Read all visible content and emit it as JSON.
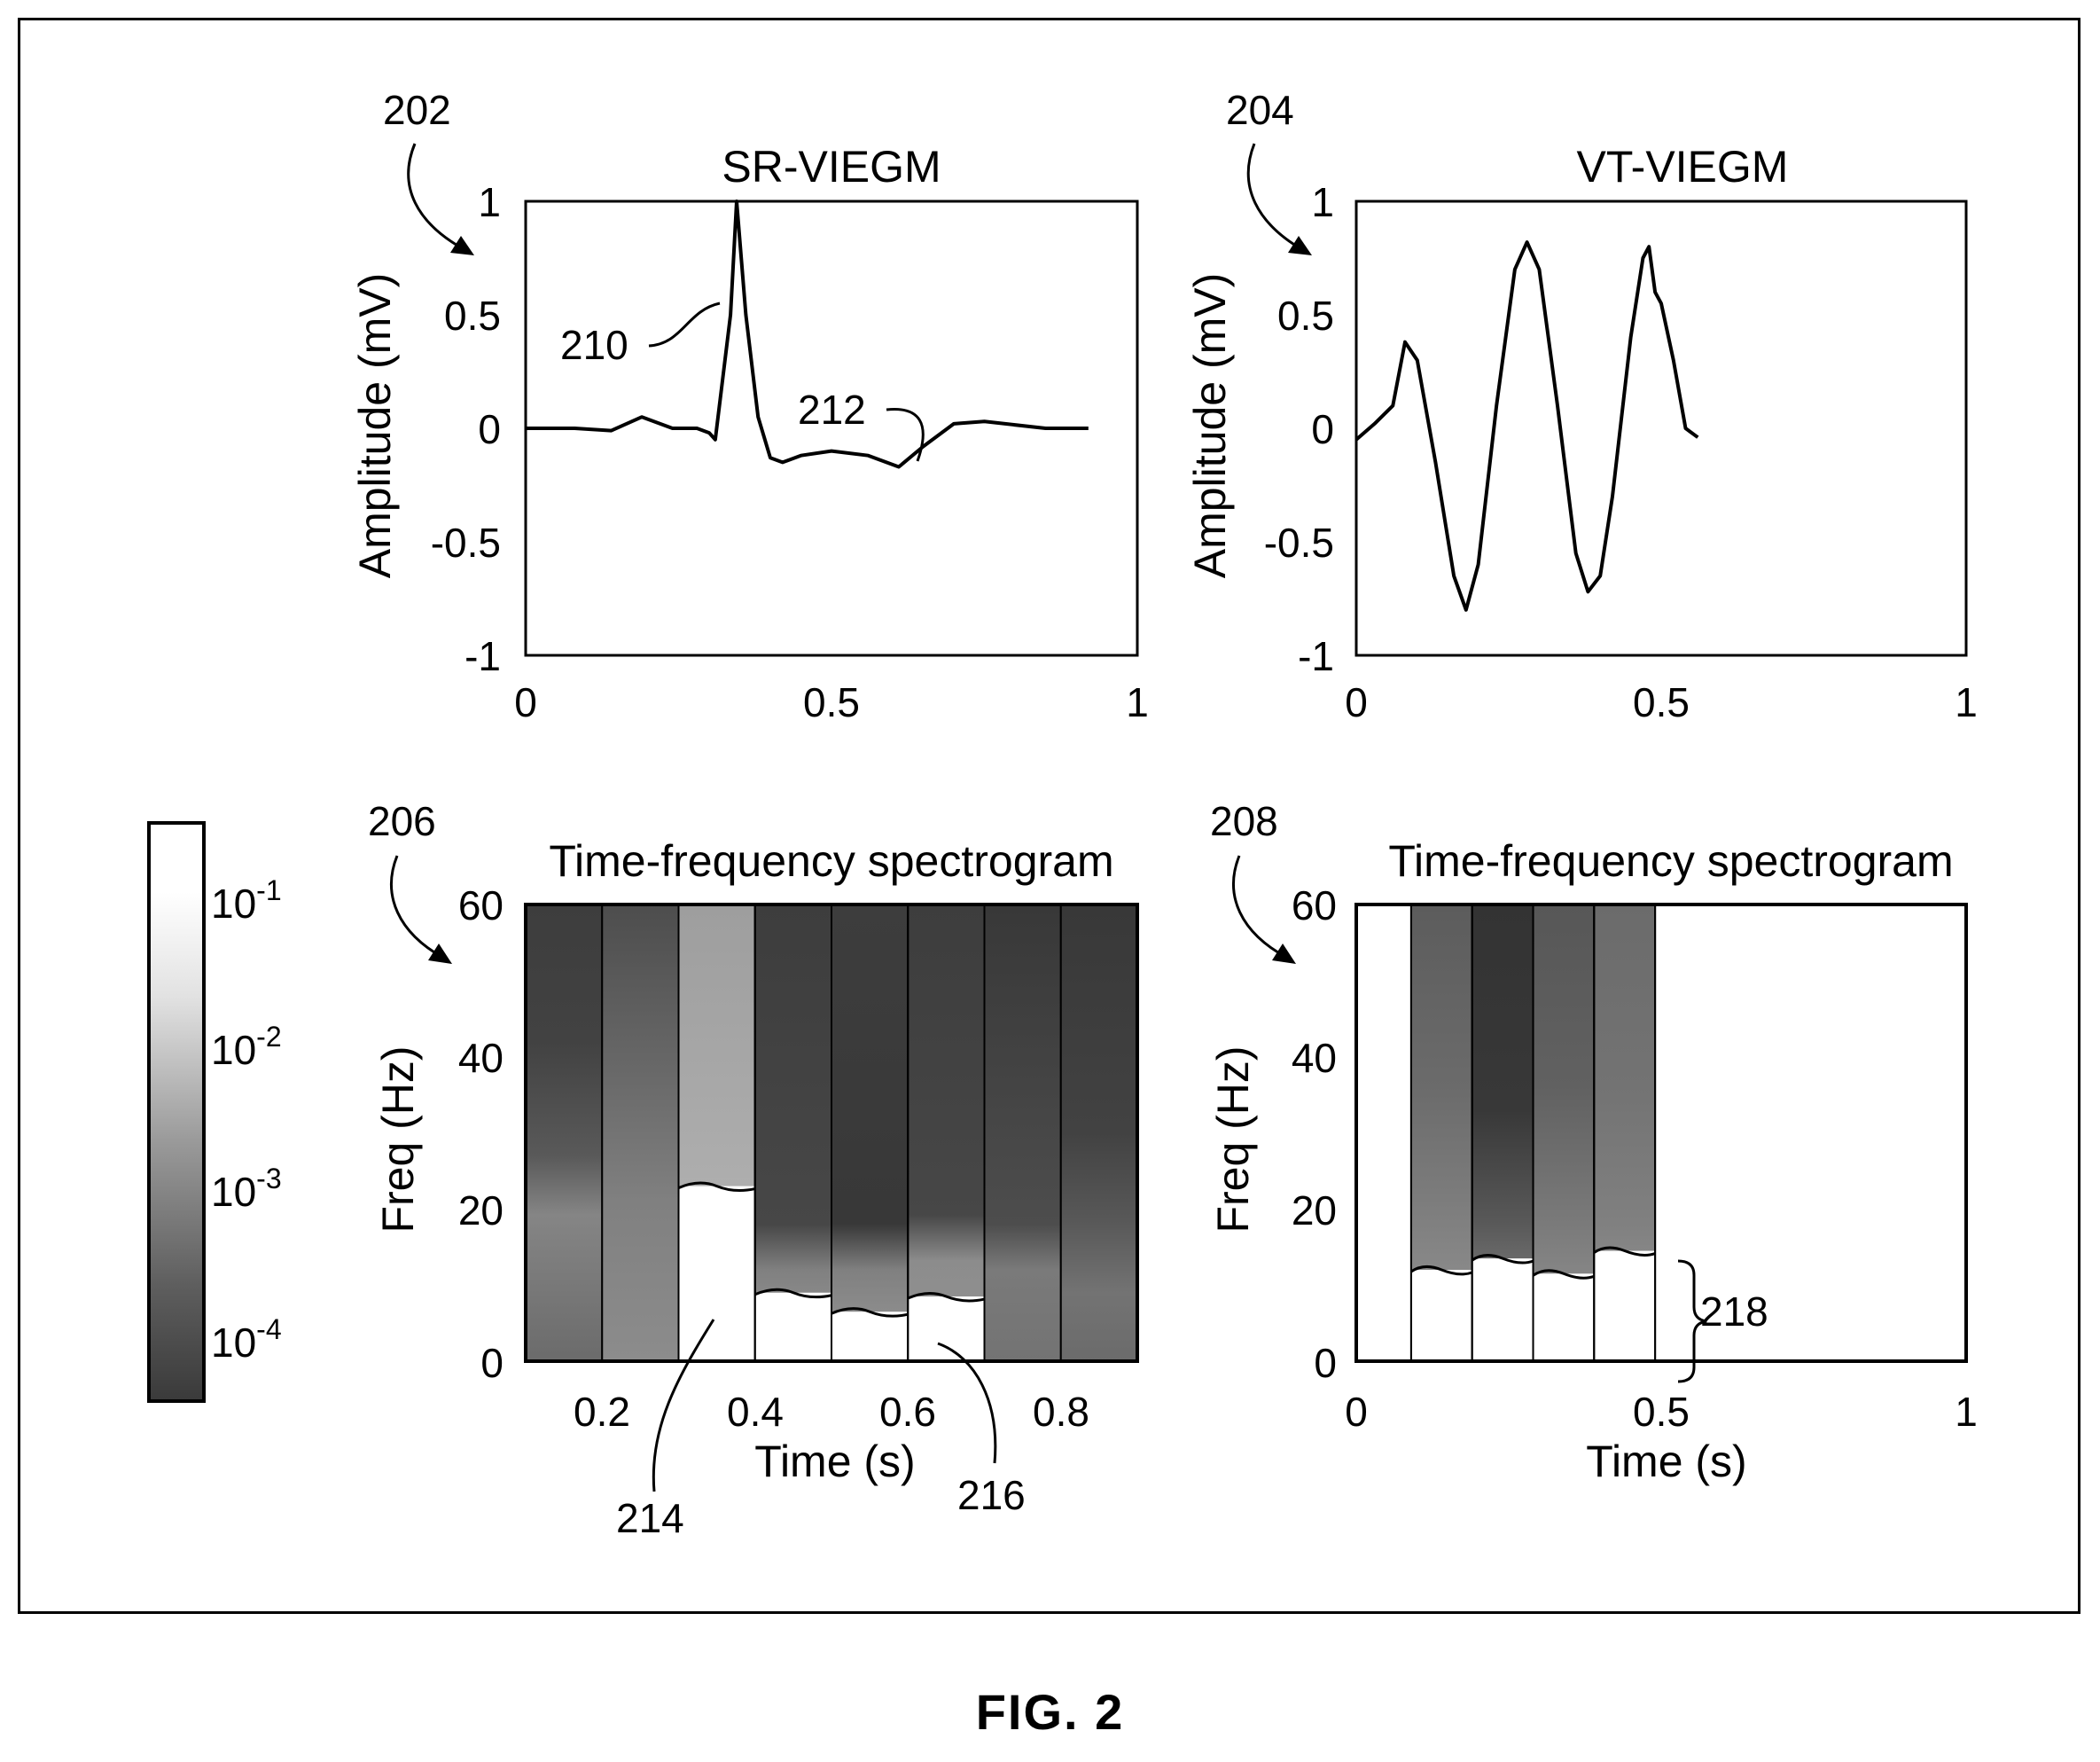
{
  "figure": {
    "caption": "FIG. 2",
    "colorbar": {
      "labels": [
        "10^-1",
        "10^-2",
        "10^-3",
        "10^-4"
      ],
      "scale": "log",
      "colormap": "grayscale (black = low, white = high)"
    }
  },
  "chart_data": [
    {
      "id": "sr-viegm",
      "type": "line",
      "ref": "202",
      "title": "SR-VIEGM",
      "xlabel": "",
      "ylabel": "Amplitude (mV)",
      "xlim": [
        0,
        1
      ],
      "ylim": [
        -1,
        1
      ],
      "xticks": [
        "0",
        "0.5",
        "1"
      ],
      "yticks": [
        "1",
        "0.5",
        "0",
        "-0.5",
        "-1"
      ],
      "series": [
        {
          "x": [
            0,
            0.08,
            0.14,
            0.19,
            0.24,
            0.28,
            0.3,
            0.31,
            0.335,
            0.345,
            0.36,
            0.38,
            0.4,
            0.42,
            0.45,
            0.5,
            0.56,
            0.61,
            0.65,
            0.7,
            0.75,
            0.85,
            0.92
          ],
          "y": [
            0,
            0,
            -0.01,
            0.05,
            0,
            0,
            -0.02,
            -0.05,
            0.5,
            1.0,
            0.5,
            0.05,
            -0.13,
            -0.15,
            -0.12,
            -0.1,
            -0.12,
            -0.17,
            -0.08,
            0.02,
            0.03,
            0.0,
            0.0
          ]
        }
      ],
      "annotations": [
        {
          "ref": "210",
          "target": "R-wave upstroke"
        },
        {
          "ref": "212",
          "target": "T-wave"
        }
      ]
    },
    {
      "id": "vt-viegm",
      "type": "line",
      "ref": "204",
      "title": "VT-VIEGM",
      "xlabel": "",
      "ylabel": "Amplitude (mV)",
      "xlim": [
        0,
        1
      ],
      "ylim": [
        -1,
        1
      ],
      "xticks": [
        "0",
        "0.5",
        "1"
      ],
      "yticks": [
        "1",
        "0.5",
        "0",
        "-0.5",
        "-1"
      ],
      "series": [
        {
          "x": [
            0,
            0.03,
            0.06,
            0.08,
            0.1,
            0.13,
            0.16,
            0.18,
            0.2,
            0.23,
            0.26,
            0.28,
            0.3,
            0.33,
            0.36,
            0.38,
            0.4,
            0.42,
            0.45,
            0.47,
            0.48,
            0.49,
            0.5,
            0.52,
            0.54,
            0.56
          ],
          "y": [
            -0.05,
            0.02,
            0.1,
            0.38,
            0.3,
            -0.15,
            -0.65,
            -0.8,
            -0.6,
            0.1,
            0.7,
            0.82,
            0.7,
            0.1,
            -0.55,
            -0.72,
            -0.65,
            -0.3,
            0.4,
            0.75,
            0.8,
            0.6,
            0.55,
            0.3,
            0.0,
            -0.04
          ]
        }
      ]
    },
    {
      "id": "sr-spectrogram",
      "type": "heatmap",
      "ref": "206",
      "title": "Time-frequency spectrogram",
      "xlabel": "Time (s)",
      "ylabel": "Freq (Hz)",
      "xlim": [
        0.1,
        0.9
      ],
      "ylim": [
        0,
        60
      ],
      "xticks": [
        "0.2",
        "0.4",
        "0.6",
        "0.8"
      ],
      "yticks": [
        "60",
        "40",
        "20",
        "0"
      ],
      "columns": [
        {
          "t0": 0.1,
          "t1": 0.2,
          "grad": [
            [
              0,
              0.42
            ],
            [
              0.32,
              0.52
            ],
            [
              0.45,
              0.35
            ],
            [
              0.7,
              0.26
            ],
            [
              1,
              0.24
            ]
          ]
        },
        {
          "t0": 0.2,
          "t1": 0.3,
          "grad": [
            [
              0,
              0.55
            ],
            [
              0.35,
              0.5
            ],
            [
              0.6,
              0.42
            ],
            [
              1,
              0.3
            ]
          ]
        },
        {
          "t0": 0.3,
          "t1": 0.4,
          "grad": [
            [
              0,
              0.72
            ],
            [
              0.6,
              0.66
            ],
            [
              1,
              0.62
            ]
          ],
          "contour_hz": 23,
          "below": "white"
        },
        {
          "t0": 0.4,
          "t1": 0.5,
          "grad": [
            [
              0,
              0.62
            ],
            [
              0.2,
              0.5
            ],
            [
              0.3,
              0.28
            ],
            [
              1,
              0.24
            ]
          ],
          "contour_hz": 9,
          "below": "white"
        },
        {
          "t0": 0.5,
          "t1": 0.6,
          "grad": [
            [
              0,
              0.6
            ],
            [
              0.2,
              0.5
            ],
            [
              0.3,
              0.22
            ],
            [
              1,
              0.24
            ]
          ],
          "contour_hz": 6.5,
          "below": "white"
        },
        {
          "t0": 0.6,
          "t1": 0.7,
          "grad": [
            [
              0,
              0.58
            ],
            [
              0.22,
              0.55
            ],
            [
              0.32,
              0.28
            ],
            [
              1,
              0.24
            ]
          ],
          "contour_hz": 8.5,
          "below": "white"
        },
        {
          "t0": 0.7,
          "t1": 0.8,
          "grad": [
            [
              0,
              0.45
            ],
            [
              0.2,
              0.48
            ],
            [
              0.3,
              0.3
            ],
            [
              1,
              0.22
            ]
          ]
        },
        {
          "t0": 0.8,
          "t1": 0.9,
          "grad": [
            [
              0,
              0.42
            ],
            [
              0.15,
              0.45
            ],
            [
              0.3,
              0.35
            ],
            [
              0.5,
              0.26
            ],
            [
              1,
              0.22
            ]
          ]
        }
      ],
      "annotations": [
        {
          "ref": "214",
          "target": "high-power low-frequency region under 0.3–0.4 s column"
        },
        {
          "ref": "216",
          "target": "low-frequency region at 0.6–0.7 s"
        }
      ]
    },
    {
      "id": "vt-spectrogram",
      "type": "heatmap",
      "ref": "208",
      "title": "Time-frequency spectrogram",
      "xlabel": "Time (s)",
      "ylabel": "Freq (Hz)",
      "xlim": [
        0,
        1
      ],
      "ylim": [
        0,
        60
      ],
      "xticks": [
        "0",
        "0.5",
        "1"
      ],
      "yticks": [
        "60",
        "40",
        "20",
        "0"
      ],
      "columns": [
        {
          "t0": 0.09,
          "t1": 0.19,
          "grad": [
            [
              0,
              0.6
            ],
            [
              0.3,
              0.5
            ],
            [
              0.6,
              0.42
            ],
            [
              1,
              0.36
            ]
          ],
          "contour_hz": 12,
          "below": "white"
        },
        {
          "t0": 0.19,
          "t1": 0.29,
          "grad": [
            [
              0,
              0.6
            ],
            [
              0.3,
              0.35
            ],
            [
              0.55,
              0.22
            ],
            [
              1,
              0.2
            ]
          ],
          "contour_hz": 13.5,
          "below": "white"
        },
        {
          "t0": 0.29,
          "t1": 0.39,
          "grad": [
            [
              0,
              0.6
            ],
            [
              0.3,
              0.48
            ],
            [
              0.6,
              0.38
            ],
            [
              1,
              0.34
            ]
          ],
          "contour_hz": 11.5,
          "below": "white"
        },
        {
          "t0": 0.39,
          "t1": 0.49,
          "grad": [
            [
              0,
              0.62
            ],
            [
              0.3,
              0.5
            ],
            [
              0.6,
              0.45
            ],
            [
              1,
              0.42
            ]
          ],
          "contour_hz": 14.5,
          "below": "white"
        }
      ],
      "annotations": [
        {
          "ref": "218",
          "target": "bracket over low-frequency band 0–14 Hz"
        }
      ]
    }
  ]
}
